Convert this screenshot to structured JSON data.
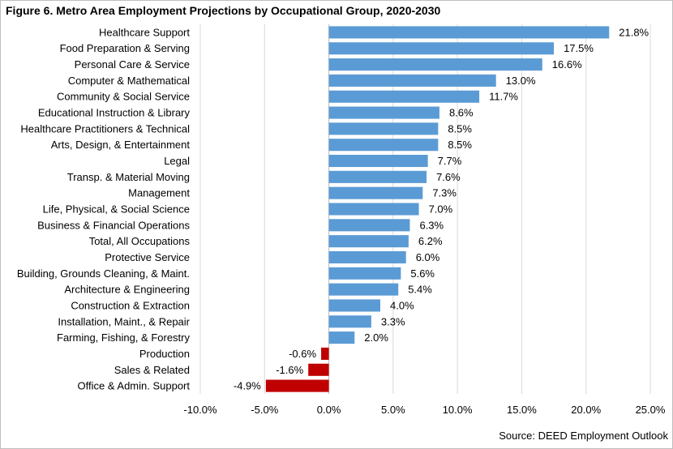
{
  "chart_data": {
    "type": "bar",
    "orientation": "horizontal",
    "title": "Figure 6. Metro Area Employment Projections by Occupational Group, 2020-2030",
    "source": "Source: DEED Employment Outlook",
    "xlabel": "",
    "ylabel": "",
    "xlim": [
      -10,
      25
    ],
    "x_ticks": [
      "-10.0%",
      "-5.0%",
      "0.0%",
      "5.0%",
      "10.0%",
      "15.0%",
      "20.0%",
      "25.0%"
    ],
    "grid": true,
    "legend": "none",
    "positive_color": "#5b9bd5",
    "negative_color": "#c00000",
    "categories": [
      "Healthcare Support",
      "Food Preparation & Serving",
      "Personal Care & Service",
      "Computer & Mathematical",
      "Community & Social Service",
      "Educational Instruction & Library",
      "Healthcare Practitioners & Technical",
      "Arts, Design, & Entertainment",
      "Legal",
      "Transp. & Material Moving",
      "Management",
      "Life, Physical, & Social Science",
      "Business & Financial Operations",
      "Total, All Occupations",
      "Protective Service",
      "Building, Grounds Cleaning, & Maint.",
      "Architecture & Engineering",
      "Construction & Extraction",
      "Installation, Maint., & Repair",
      "Farming, Fishing, & Forestry",
      "Production",
      "Sales & Related",
      "Office & Admin. Support"
    ],
    "values": [
      21.8,
      17.5,
      16.6,
      13.0,
      11.7,
      8.6,
      8.5,
      8.5,
      7.7,
      7.6,
      7.3,
      7.0,
      6.3,
      6.2,
      6.0,
      5.6,
      5.4,
      4.0,
      3.3,
      2.0,
      -0.6,
      -1.6,
      -4.9
    ],
    "value_labels": [
      "21.8%",
      "17.5%",
      "16.6%",
      "13.0%",
      "11.7%",
      "8.6%",
      "8.5%",
      "8.5%",
      "7.7%",
      "7.6%",
      "7.3%",
      "7.0%",
      "6.3%",
      "6.2%",
      "6.0%",
      "5.6%",
      "5.4%",
      "4.0%",
      "3.3%",
      "2.0%",
      "-0.6%",
      "-1.6%",
      "-4.9%"
    ]
  }
}
